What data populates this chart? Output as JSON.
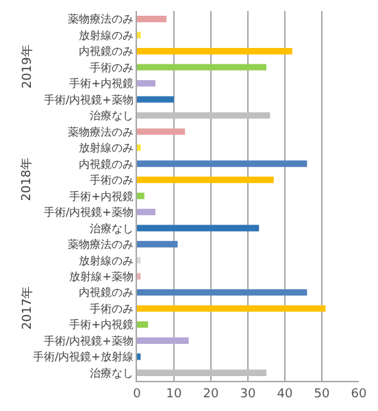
{
  "chart_data": {
    "type": "bar",
    "orientation": "horizontal",
    "categories": [
      "薬物療法のみ",
      "放射線のみ",
      "内視鏡のみ",
      "手術のみ",
      "手術+内視鏡",
      "手術/内視鏡+薬物",
      "治療なし",
      "薬物療法のみ",
      "放射線のみ",
      "内視鏡のみ",
      "手術のみ",
      "手術+内視鏡",
      "手術/内視鏡+薬物",
      "治療なし",
      "薬物療法のみ",
      "放射線のみ",
      "放射線+薬物",
      "内視鏡のみ",
      "手術のみ",
      "手術+内視鏡",
      "手術/内視鏡+薬物",
      "手術/内視鏡+放射線",
      "治療なし"
    ],
    "values": [
      8,
      1,
      42,
      35,
      5,
      10,
      36,
      13,
      1,
      46,
      37,
      2,
      5,
      33,
      11,
      1,
      1,
      46,
      51,
      3,
      14,
      1,
      35
    ],
    "colors": [
      "#e6a0a0",
      "#ffe033",
      "#ffc000",
      "#92d050",
      "#b4a7d6",
      "#2e75b6",
      "#bfbfbf",
      "#e6a0a0",
      "#ffe033",
      "#4f81bd",
      "#ffc000",
      "#92d050",
      "#b4a7d6",
      "#2e75b6",
      "#4f81bd",
      "#d9d9d9",
      "#e6b0b0",
      "#4f81bd",
      "#ffc000",
      "#92d050",
      "#b4a7d6",
      "#2e75b6",
      "#bfbfbf"
    ],
    "annotations": [
      "2019年",
      "2018年",
      "2017年"
    ],
    "xlim": [
      0,
      60
    ],
    "xticks": [
      0,
      10,
      20,
      30,
      40,
      50,
      60
    ],
    "grid": "x"
  }
}
